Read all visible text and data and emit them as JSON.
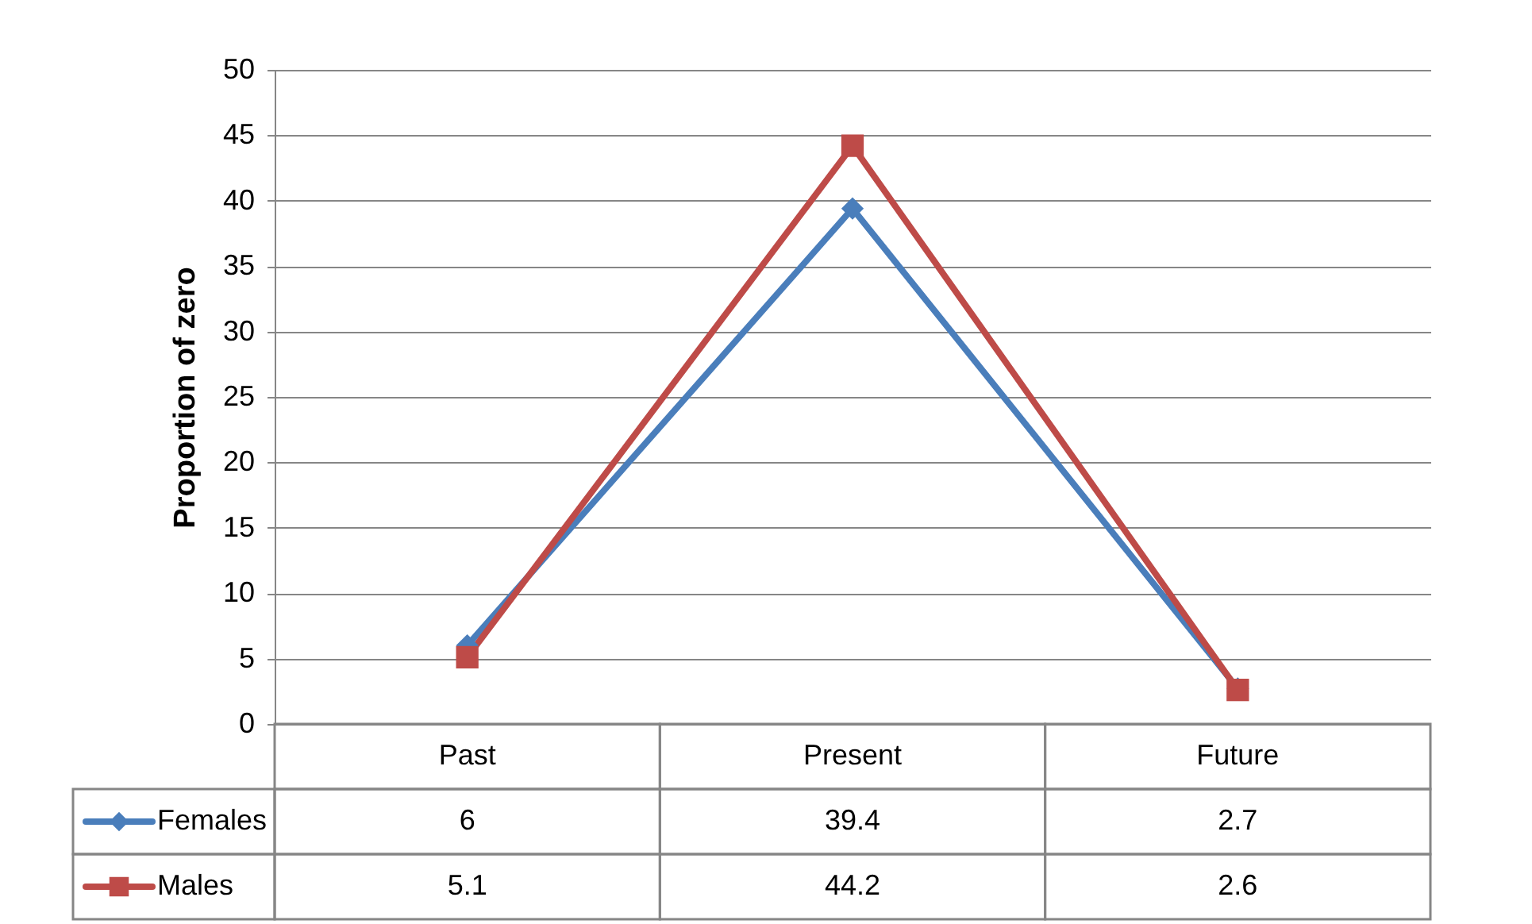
{
  "chart_data": {
    "type": "line",
    "ylabel": "Proportion of zero",
    "categories": [
      "Past",
      "Present",
      "Future"
    ],
    "series": [
      {
        "name": "Females",
        "color": "#4a7ebb",
        "marker": "diamond",
        "values": [
          6,
          39.4,
          2.7
        ]
      },
      {
        "name": "Males",
        "color": "#be4b48",
        "marker": "square",
        "values": [
          5.1,
          44.2,
          2.6
        ]
      }
    ],
    "ylim": [
      0,
      50
    ],
    "yticks": [
      0,
      5,
      10,
      15,
      20,
      25,
      30,
      35,
      40,
      45,
      50
    ],
    "grid": "y",
    "legend": "bottom",
    "data_labels": true,
    "line_style": "solid"
  }
}
